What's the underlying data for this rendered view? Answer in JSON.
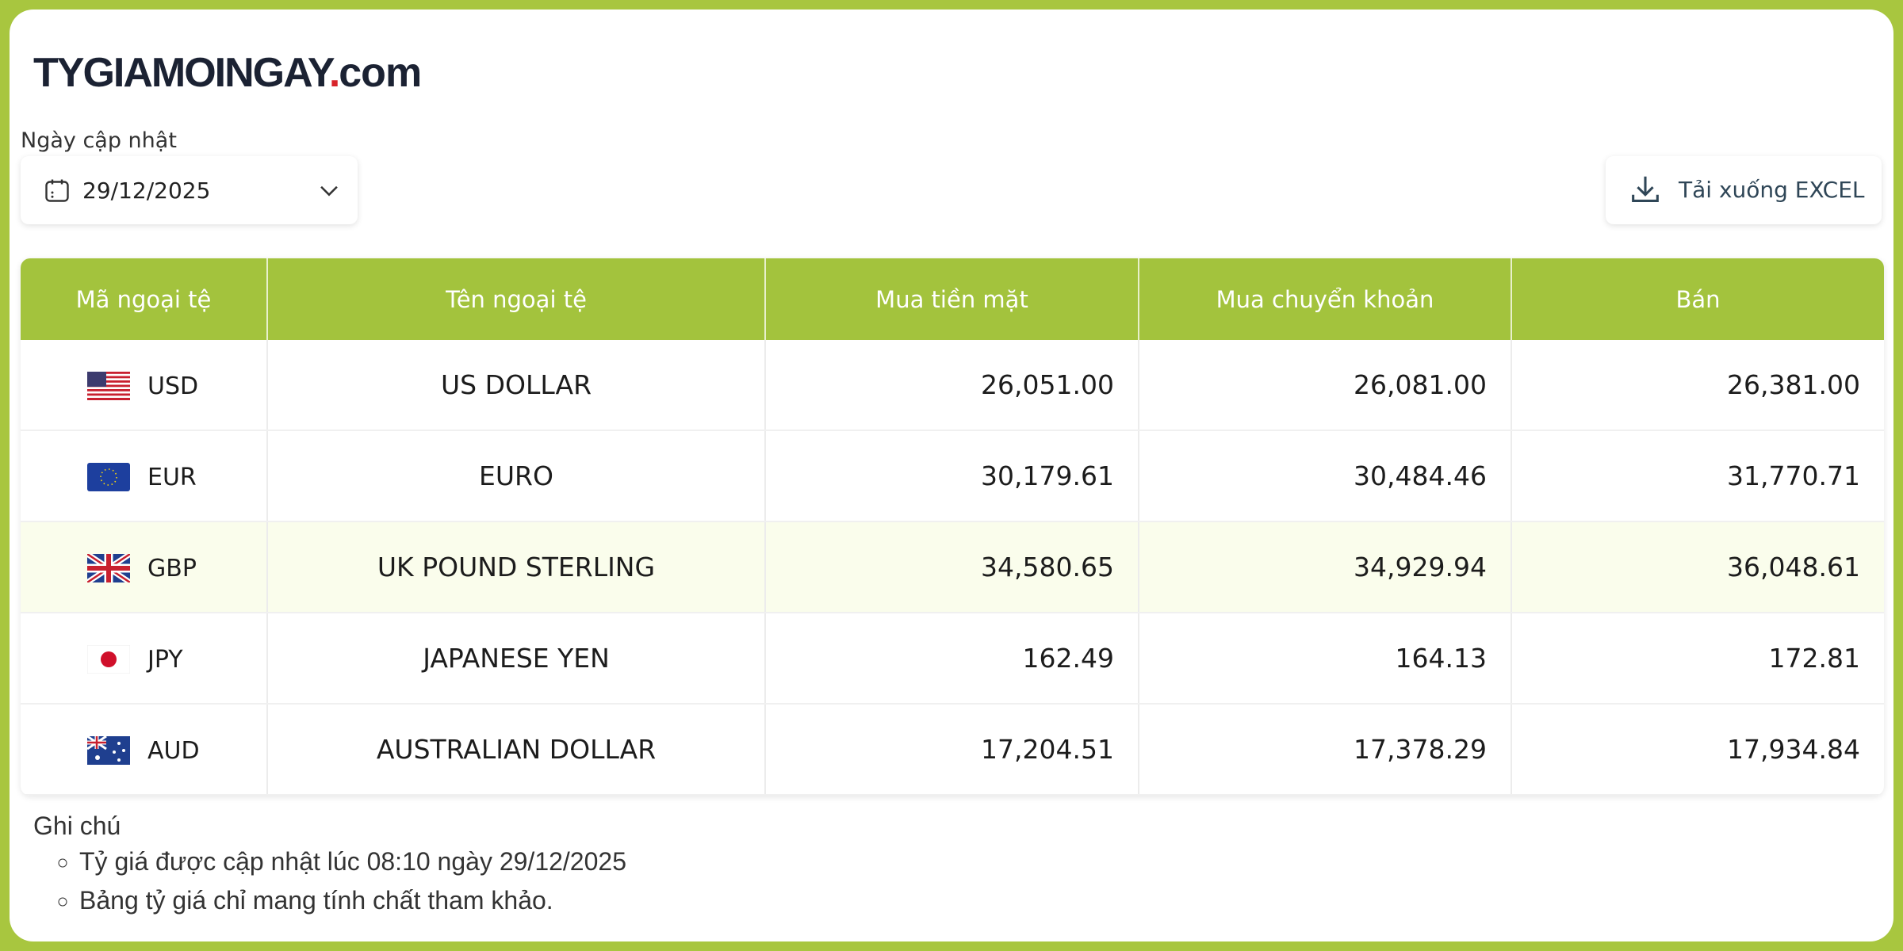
{
  "header": {
    "logo": {
      "name": "TYGIAMOINGAY",
      "dot": ".",
      "tld": "com"
    },
    "date_label": "Ngày cập nhật",
    "date": "29/12/2025",
    "download_button": "Tải xuống EXCEL"
  },
  "table": {
    "columns": [
      "Mã ngoại tệ",
      "Tên ngoại tệ",
      "Mua tiền mặt",
      "Mua chuyển khoản",
      "Bán"
    ],
    "rows": [
      [
        "USD",
        "US DOLLAR",
        "26,051.00",
        "26,081.00",
        "26,381.00"
      ],
      [
        "EUR",
        "EURO",
        "30,179.61",
        "30,484.46",
        "31,770.71"
      ],
      [
        "GBP",
        "UK POUND STERLING",
        "34,580.65",
        "34,929.94",
        "36,048.61"
      ],
      [
        "JPY",
        "JAPANESE YEN",
        "162.49",
        "164.13",
        "172.81"
      ],
      [
        "AUD",
        "AUSTRALIAN DOLLAR",
        "17,204.51",
        "17,378.29",
        "17,934.84"
      ]
    ]
  },
  "notes": {
    "title": "Ghi chú",
    "items": [
      "Tỷ giá được cập nhật lúc 08:10 ngày 29/12/2025",
      "Bảng tỷ giá chỉ mang tính chất tham khảo."
    ]
  }
}
